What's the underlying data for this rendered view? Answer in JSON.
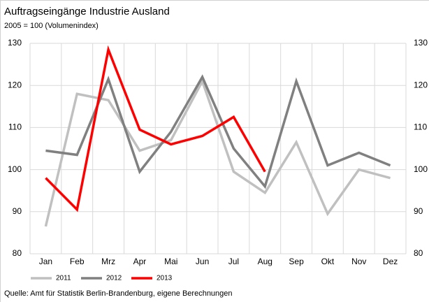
{
  "chart_data": {
    "type": "line",
    "title": "Auftragseingänge Industrie Ausland",
    "subtitle": "2005 = 100 (Volumenindex)",
    "source": "Quelle: Amt für Statistik Berlin-Brandenburg, eigene Berechnungen",
    "categories": [
      "Jan",
      "Feb",
      "Mrz",
      "Apr",
      "Mai",
      "Jun",
      "Jul",
      "Aug",
      "Sep",
      "Okt",
      "Nov",
      "Dez"
    ],
    "series": [
      {
        "name": "2011",
        "color": "#c0c0c0",
        "values": [
          86.5,
          118,
          116.5,
          104.5,
          107,
          121,
          99.5,
          94.5,
          106.5,
          89.5,
          100,
          98
        ]
      },
      {
        "name": "2012",
        "color": "#808080",
        "values": [
          104.5,
          103.5,
          121.5,
          99.5,
          109,
          122,
          105,
          96,
          121,
          101,
          104,
          101
        ]
      },
      {
        "name": "2013",
        "color": "#ff0000",
        "values": [
          98,
          90.5,
          128.5,
          109.5,
          106,
          108,
          112.5,
          99.5,
          null,
          null,
          null,
          null
        ]
      }
    ],
    "ylim": [
      80,
      130
    ],
    "yticks": [
      80,
      90,
      100,
      110,
      120,
      130
    ],
    "y2lim": [
      80,
      130
    ],
    "y2ticks": [
      80,
      90,
      100,
      110,
      120,
      130
    ],
    "grid": true,
    "legend": "bottom"
  }
}
